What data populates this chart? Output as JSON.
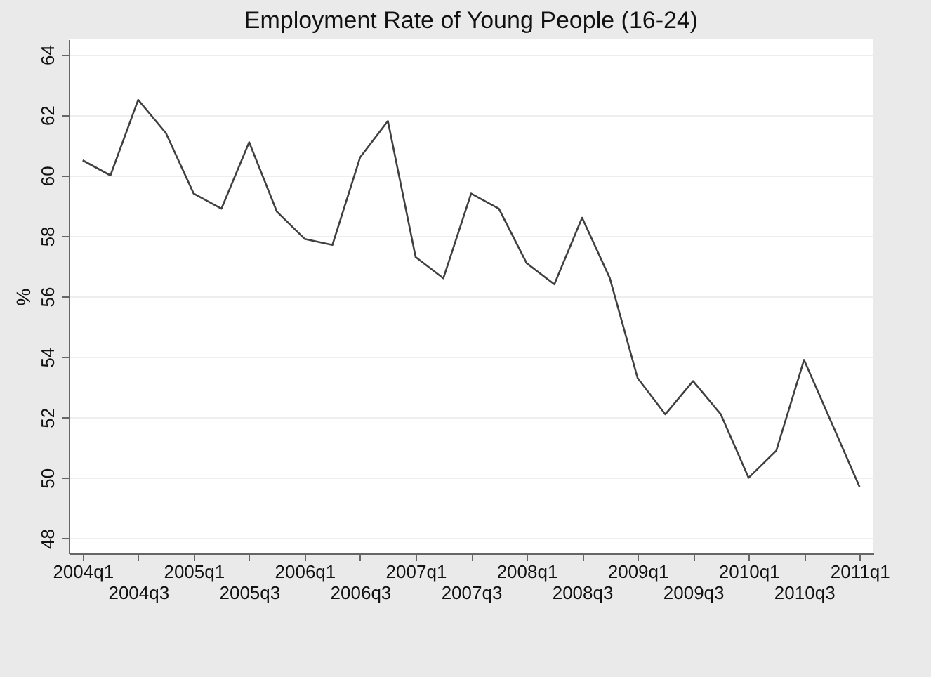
{
  "chart_data": {
    "type": "line",
    "title": "Employment Rate of Young People (16-24)",
    "ylabel": "%",
    "categories": [
      "2004q1",
      null,
      "2004q3",
      null,
      "2005q1",
      null,
      "2005q3",
      null,
      "2006q1",
      null,
      "2006q3",
      null,
      "2007q1",
      null,
      "2007q3",
      null,
      "2008q1",
      null,
      "2008q3",
      null,
      "2009q1",
      null,
      "2009q3",
      null,
      "2010q1",
      null,
      "2010q3",
      null,
      "2011q1"
    ],
    "series": [
      {
        "color": "#404040",
        "values": [
          60.5,
          60.0,
          62.5,
          61.4,
          59.4,
          58.9,
          61.1,
          58.8,
          57.9,
          57.7,
          60.6,
          61.8,
          57.3,
          56.6,
          59.4,
          58.9,
          57.1,
          56.4,
          58.6,
          56.6,
          53.3,
          52.1,
          53.2,
          52.1,
          50.0,
          50.9,
          53.9,
          51.8,
          49.7
        ]
      }
    ],
    "ylim": [
      47.5,
      64.5
    ],
    "yticks": [
      48,
      50,
      52,
      54,
      56,
      58,
      60,
      62,
      64
    ],
    "grid": "y",
    "marker": "none",
    "line_style": "solid"
  }
}
